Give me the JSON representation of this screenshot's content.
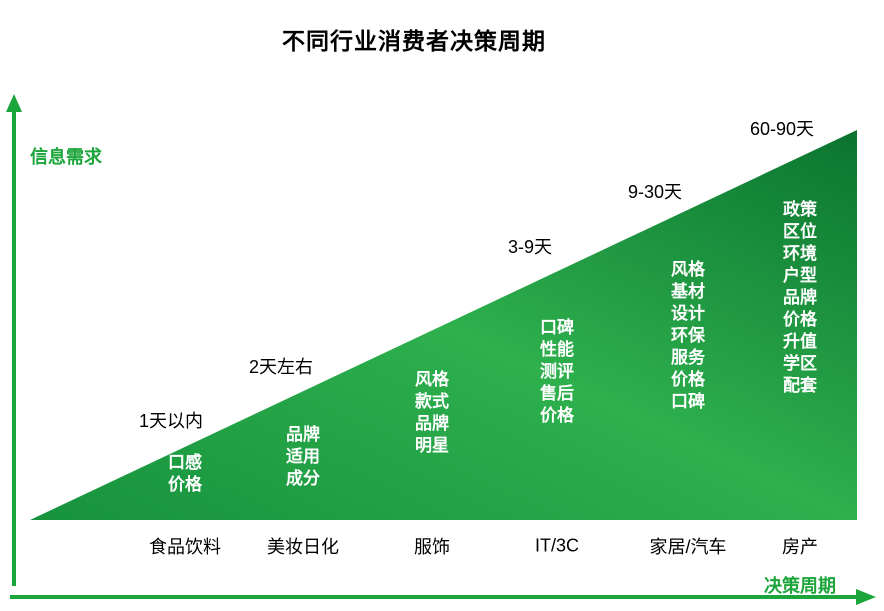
{
  "title": "不同行业消费者决策周期",
  "axes": {
    "y_label": "信息需求",
    "x_label": "决策周期"
  },
  "colors": {
    "axis_green": "#1ca53b",
    "triangle_bottom_left": "#16923d",
    "triangle_mid": "#2eb04d",
    "triangle_top_right": "#0b7430",
    "factor_text": "#ffffff",
    "label_text": "#000000"
  },
  "chart_data": {
    "type": "area",
    "shape": "right-triangle-wedge",
    "title": "不同行业消费者决策周期",
    "xlabel": "决策周期",
    "ylabel": "信息需求",
    "legend": false,
    "grid": false,
    "categories": [
      "食品饮料",
      "美妆日化",
      "服饰",
      "IT/3C",
      "家居/汽车",
      "房产"
    ],
    "cycle_labels": [
      "1天以内",
      "2天左右",
      "",
      "3-9天",
      "9-30天",
      "60-90天"
    ],
    "industries": [
      {
        "name": "食品饮料",
        "cycle_label": "1天以内",
        "factors": [
          "口感",
          "价格"
        ]
      },
      {
        "name": "美妆日化",
        "cycle_label": "2天左右",
        "factors": [
          "品牌",
          "适用",
          "成分"
        ]
      },
      {
        "name": "服饰",
        "cycle_label": "",
        "factors": [
          "风格",
          "款式",
          "品牌",
          "明星"
        ]
      },
      {
        "name": "IT/3C",
        "cycle_label": "3-9天",
        "factors": [
          "口碑",
          "性能",
          "测评",
          "售后",
          "价格"
        ]
      },
      {
        "name": "家居/汽车",
        "cycle_label": "9-30天",
        "factors": [
          "风格",
          "基材",
          "设计",
          "环保",
          "服务",
          "价格",
          "口碑"
        ]
      },
      {
        "name": "房产",
        "cycle_label": "60-90天",
        "factors": [
          "政策",
          "区位",
          "环境",
          "户型",
          "品牌",
          "价格",
          "升值",
          "学区",
          "配套"
        ]
      }
    ]
  }
}
